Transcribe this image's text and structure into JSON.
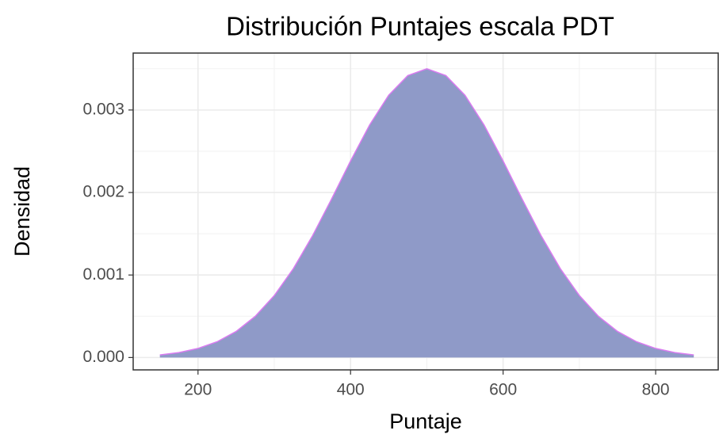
{
  "chart_data": {
    "type": "area",
    "title": "Distribución Puntajes escala PDT",
    "x_label": "Puntaje",
    "y_label": "Densidad",
    "x": [
      150,
      175,
      200,
      225,
      250,
      275,
      300,
      325,
      350,
      375,
      400,
      425,
      450,
      475,
      500,
      525,
      550,
      575,
      600,
      625,
      650,
      675,
      700,
      725,
      750,
      775,
      800,
      825,
      850
    ],
    "values": [
      3.1e-05,
      6e-05,
      0.00011,
      0.000191,
      0.000316,
      0.000499,
      0.000751,
      0.001077,
      0.001473,
      0.001919,
      0.002382,
      0.002819,
      0.003179,
      0.003417,
      0.0035,
      0.003417,
      0.003179,
      0.002819,
      0.002382,
      0.001919,
      0.001473,
      0.001077,
      0.000751,
      0.000499,
      0.000316,
      0.000191,
      0.00011,
      6e-05,
      3.1e-05
    ],
    "color": "#8f9ac8",
    "line_color": "#d97cf0",
    "xlim": [
      115,
      882
    ],
    "ylim": [
      -0.00015,
      0.00369
    ],
    "xticks": [
      200,
      400,
      600,
      800
    ],
    "yticks": [
      {
        "value": 0,
        "label": "0.000"
      },
      0.001,
      0.002,
      0.003
    ],
    "minor_xticks": [
      300,
      500,
      700
    ],
    "minor_yticks": [
      0.0005,
      0.0015,
      0.0025,
      0.0035
    ],
    "grid": true
  }
}
